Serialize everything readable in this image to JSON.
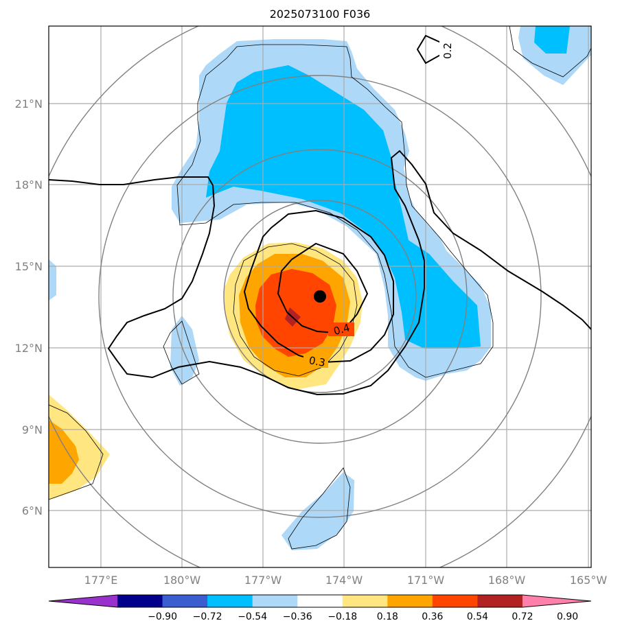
{
  "chart_data": {
    "type": "contour-map",
    "title": "2025073100 F036",
    "projection": "polar-stereographic",
    "lon_ticks": [
      {
        "value": 177,
        "label": "177°E"
      },
      {
        "value": 180,
        "label": "180°W"
      },
      {
        "value": 183,
        "label": "177°W"
      },
      {
        "value": 186,
        "label": "174°W"
      },
      {
        "value": 189,
        "label": "171°W"
      },
      {
        "value": 192,
        "label": "168°W"
      },
      {
        "value": 195,
        "label": "165°W"
      }
    ],
    "lat_ticks": [
      {
        "value": 21,
        "label": "21°N"
      },
      {
        "value": 18,
        "label": "18°N"
      },
      {
        "value": 15,
        "label": "15°N"
      },
      {
        "value": 12,
        "label": "12°N"
      },
      {
        "value": 9,
        "label": "9°N"
      },
      {
        "value": 6,
        "label": "6°N"
      }
    ],
    "colorbar": {
      "levels": [
        "−0.90",
        "−0.72",
        "−0.54",
        "−0.36",
        "−0.18",
        "0.18",
        "0.36",
        "0.54",
        "0.72",
        "0.90"
      ],
      "colors": [
        "#9932cc",
        "#00008b",
        "#3a5ed0",
        "#00bfff",
        "#add8f8",
        "#ffffff",
        "#ffe680",
        "#ffa500",
        "#ff4500",
        "#b22222",
        "#ff80aa"
      ],
      "extend": "both"
    },
    "contour_labels": [
      "0.2",
      "0.3",
      "0.4"
    ],
    "storm_center": {
      "lon": 185.0,
      "lat": 13.9
    }
  }
}
